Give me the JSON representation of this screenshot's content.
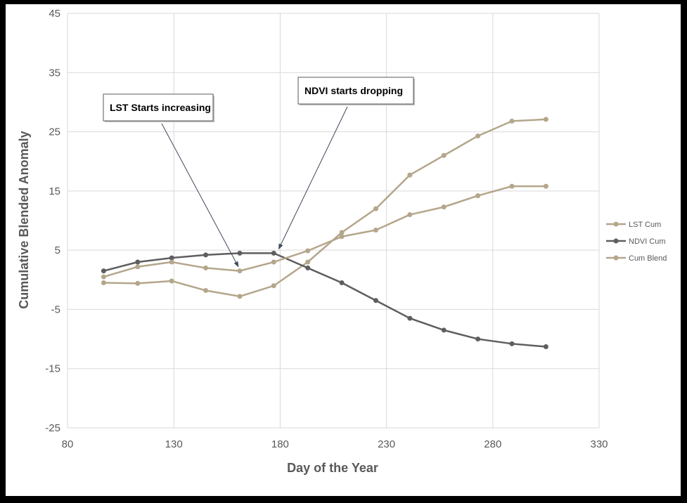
{
  "chart_data": {
    "type": "line",
    "title": "",
    "xlabel": "Day of the Year",
    "ylabel": "Cumulative Blended Anomaly",
    "xlim": [
      80,
      330
    ],
    "ylim": [
      -25,
      45
    ],
    "xticks": [
      80,
      130,
      180,
      230,
      280,
      330
    ],
    "yticks": [
      -25,
      -15,
      -5,
      5,
      15,
      25,
      35,
      45
    ],
    "grid": true,
    "legend_position": "right",
    "series": [
      {
        "name": "LST Cum",
        "color": "#b4a68b",
        "x": [
          97,
          113,
          129,
          145,
          161,
          177,
          193,
          209,
          225,
          241,
          257,
          273,
          289,
          305
        ],
        "y": [
          -0.5,
          -0.6,
          -0.2,
          -1.8,
          -2.8,
          -1.0,
          3.0,
          8.0,
          12.0,
          17.7,
          21.0,
          24.3,
          26.8,
          27.1
        ]
      },
      {
        "name": "NDVI Cum",
        "color": "#5e5e60",
        "x": [
          97,
          113,
          129,
          145,
          161,
          177,
          193,
          209,
          225,
          241,
          257,
          273,
          289,
          305
        ],
        "y": [
          1.5,
          3.0,
          3.7,
          4.2,
          4.5,
          4.5,
          2.0,
          -0.5,
          -3.5,
          -6.5,
          -8.5,
          -10.0,
          -10.8,
          -11.3
        ]
      },
      {
        "name": "Cum Blend",
        "color": "#b4a68b",
        "x": [
          97,
          113,
          129,
          145,
          161,
          177,
          193,
          209,
          225,
          241,
          257,
          273,
          289,
          305
        ],
        "y": [
          0.5,
          2.2,
          3.0,
          2.0,
          1.5,
          3.0,
          4.9,
          7.3,
          8.4,
          11.0,
          12.3,
          14.2,
          15.8,
          15.8
        ]
      }
    ],
    "annotations": [
      {
        "text": "LST Starts increasing",
        "target_x": 161,
        "target_y": 1.5
      },
      {
        "text": "NDVI starts dropping",
        "target_x": 180,
        "target_y": 4.5
      }
    ]
  }
}
